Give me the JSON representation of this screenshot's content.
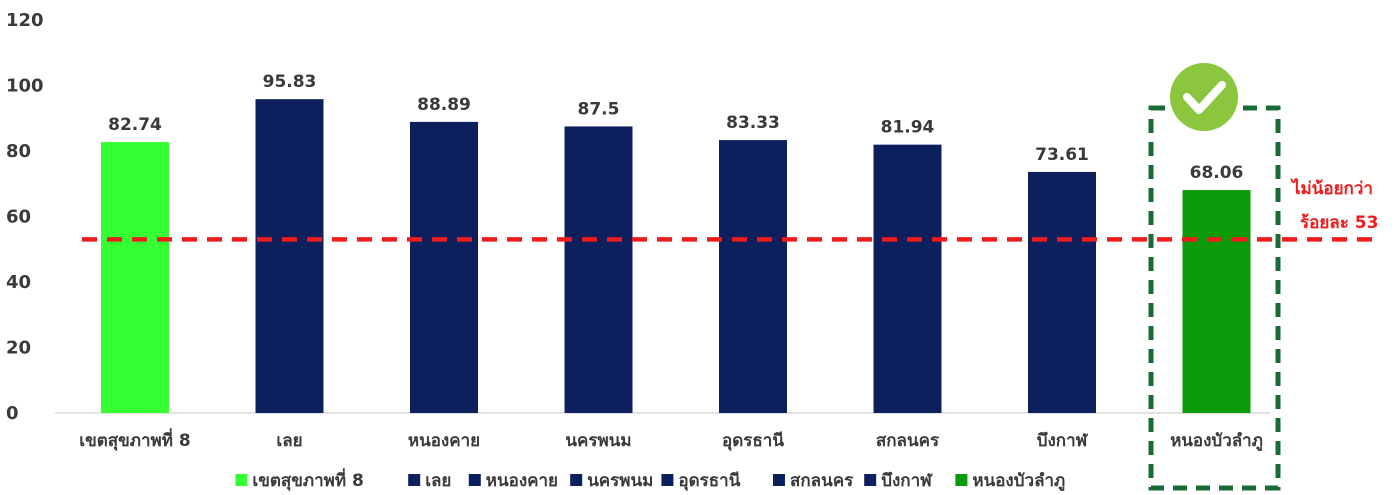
{
  "chart_data": {
    "type": "bar",
    "categories": [
      "เขตสุขภาพที่ 8",
      "เลย",
      "หนองคาย",
      "นครพนม",
      "อุดรธานี",
      "สกลนคร",
      "บึงกาฬ",
      "หนองบัวลำภู"
    ],
    "values": [
      82.74,
      95.83,
      88.89,
      87.5,
      83.33,
      81.94,
      73.61,
      68.06
    ],
    "value_labels": [
      "82.74",
      "95.83",
      "88.89",
      "87.5",
      "83.33",
      "81.94",
      "73.61",
      "68.06"
    ],
    "bar_colors": [
      "#33ff33",
      "#0d1f5c",
      "#0d1f5c",
      "#0d1f5c",
      "#0d1f5c",
      "#0d1f5c",
      "#0d1f5c",
      "#0a9a0a"
    ],
    "ylim": [
      0,
      120
    ],
    "yticks": [
      "0",
      "20",
      "40",
      "60",
      "80",
      "100",
      "120"
    ],
    "grid": false,
    "legend_position": "bottom",
    "threshold": {
      "value": 53,
      "color": "#ee1c1c",
      "label_line1": "ไม่น้อยกว่า",
      "label_line2": "ร้อยละ 53"
    },
    "highlight": {
      "category": "หนองบัวลำภู",
      "box_color": "#1a6b35",
      "icon": "checkmark-icon",
      "icon_color": "#8cc63f"
    }
  }
}
